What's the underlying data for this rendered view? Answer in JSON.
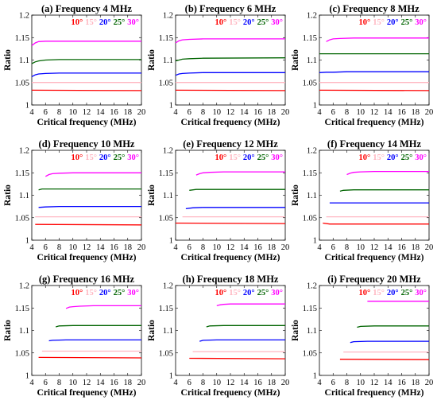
{
  "shared": {
    "ylabel": "Ratio",
    "xlabel": "Critical frequency (MHz)",
    "xticks": [
      "4",
      "6",
      "8",
      "10",
      "12",
      "14",
      "16",
      "18",
      "20"
    ],
    "yticks": [
      "1",
      "1.05",
      "1.1",
      "1.15",
      "1.2"
    ],
    "legend": [
      {
        "label": "10°",
        "color": "#ff0000"
      },
      {
        "label": "15°",
        "color": "#ffb6c1"
      },
      {
        "label": "20°",
        "color": "#0000ff"
      },
      {
        "label": "25°",
        "color": "#006400"
      },
      {
        "label": "30°",
        "color": "#ff00ff"
      }
    ]
  },
  "chart_data": [
    {
      "type": "line",
      "title": "(a) Frequency 4 MHz",
      "xlim": [
        4,
        20
      ],
      "ylim": [
        1,
        1.2
      ],
      "series": [
        {
          "name": "10°",
          "x": [
            4,
            20
          ],
          "y": [
            1.033,
            1.032
          ]
        },
        {
          "name": "15°",
          "x": [
            4,
            20
          ],
          "y": [
            1.05,
            1.05
          ]
        },
        {
          "name": "20°",
          "x": [
            4,
            4.5,
            5,
            6,
            8,
            20
          ],
          "y": [
            1.063,
            1.067,
            1.069,
            1.07,
            1.071,
            1.071
          ]
        },
        {
          "name": "25°",
          "x": [
            4,
            4.5,
            5,
            6,
            8,
            20
          ],
          "y": [
            1.092,
            1.096,
            1.098,
            1.1,
            1.101,
            1.101
          ]
        },
        {
          "name": "30°",
          "x": [
            4,
            4.5,
            5,
            6,
            8,
            20
          ],
          "y": [
            1.132,
            1.138,
            1.141,
            1.142,
            1.142,
            1.142
          ]
        }
      ]
    },
    {
      "type": "line",
      "title": "(b) Frequency 6 MHz",
      "xlim": [
        4,
        20
      ],
      "ylim": [
        1,
        1.2
      ],
      "series": [
        {
          "name": "10°",
          "x": [
            4,
            20
          ],
          "y": [
            1.033,
            1.032
          ]
        },
        {
          "name": "15°",
          "x": [
            4,
            20
          ],
          "y": [
            1.05,
            1.05
          ]
        },
        {
          "name": "20°",
          "x": [
            4,
            4.5,
            5,
            6,
            8,
            20
          ],
          "y": [
            1.066,
            1.069,
            1.07,
            1.071,
            1.072,
            1.072
          ]
        },
        {
          "name": "25°",
          "x": [
            4,
            4.5,
            5,
            6,
            8,
            20
          ],
          "y": [
            1.098,
            1.1,
            1.102,
            1.103,
            1.104,
            1.105
          ]
        },
        {
          "name": "30°",
          "x": [
            4,
            4.5,
            5,
            6,
            8,
            20
          ],
          "y": [
            1.138,
            1.143,
            1.145,
            1.146,
            1.147,
            1.147
          ]
        }
      ]
    },
    {
      "type": "line",
      "title": "(c) Frequency 8 MHz",
      "xlim": [
        4,
        20
      ],
      "ylim": [
        1,
        1.2
      ],
      "series": [
        {
          "name": "10°",
          "x": [
            4,
            20
          ],
          "y": [
            1.033,
            1.032
          ]
        },
        {
          "name": "15°",
          "x": [
            4,
            20
          ],
          "y": [
            1.05,
            1.05
          ]
        },
        {
          "name": "20°",
          "x": [
            4,
            5,
            6,
            8,
            20
          ],
          "y": [
            1.072,
            1.073,
            1.073,
            1.074,
            1.074
          ]
        },
        {
          "name": "25°",
          "x": [
            4,
            6,
            20
          ],
          "y": [
            1.114,
            1.114,
            1.114
          ]
        },
        {
          "name": "30°",
          "x": [
            5,
            5.5,
            6,
            7,
            9,
            20
          ],
          "y": [
            1.141,
            1.145,
            1.147,
            1.148,
            1.149,
            1.149
          ]
        }
      ]
    },
    {
      "type": "line",
      "title": "(d) Frequency 10 MHz",
      "xlim": [
        4,
        20
      ],
      "ylim": [
        1,
        1.2
      ],
      "series": [
        {
          "name": "10°",
          "x": [
            4.5,
            20
          ],
          "y": [
            1.035,
            1.034
          ]
        },
        {
          "name": "15°",
          "x": [
            4.5,
            20
          ],
          "y": [
            1.052,
            1.052
          ]
        },
        {
          "name": "20°",
          "x": [
            5,
            6,
            8,
            20
          ],
          "y": [
            1.073,
            1.074,
            1.075,
            1.075
          ]
        },
        {
          "name": "25°",
          "x": [
            5,
            5.5,
            7,
            20
          ],
          "y": [
            1.112,
            1.114,
            1.114,
            1.114
          ]
        },
        {
          "name": "30°",
          "x": [
            6,
            6.5,
            7,
            8,
            10,
            20
          ],
          "y": [
            1.142,
            1.146,
            1.148,
            1.149,
            1.15,
            1.15
          ]
        }
      ]
    },
    {
      "type": "line",
      "title": "(e) Frequency 12 MHz",
      "xlim": [
        4,
        20
      ],
      "ylim": [
        1,
        1.2
      ],
      "series": [
        {
          "name": "10°",
          "x": [
            4,
            20
          ],
          "y": [
            1.038,
            1.037
          ]
        },
        {
          "name": "15°",
          "x": [
            5,
            20
          ],
          "y": [
            1.052,
            1.052
          ]
        },
        {
          "name": "20°",
          "x": [
            5.5,
            6.5,
            8,
            20
          ],
          "y": [
            1.07,
            1.072,
            1.073,
            1.073
          ]
        },
        {
          "name": "25°",
          "x": [
            6,
            7,
            20
          ],
          "y": [
            1.111,
            1.113,
            1.113
          ]
        },
        {
          "name": "30°",
          "x": [
            7,
            7.5,
            8,
            9,
            11,
            20
          ],
          "y": [
            1.145,
            1.148,
            1.15,
            1.151,
            1.152,
            1.152
          ]
        }
      ]
    },
    {
      "type": "line",
      "title": "(f) Frequency 14 MHz",
      "xlim": [
        4,
        20
      ],
      "ylim": [
        1,
        1.2
      ],
      "series": [
        {
          "name": "10°",
          "x": [
            4.5,
            5.5,
            20
          ],
          "y": [
            1.038,
            1.036,
            1.036
          ]
        },
        {
          "name": "15°",
          "x": [
            5,
            20
          ],
          "y": [
            1.052,
            1.052
          ]
        },
        {
          "name": "20°",
          "x": [
            5.5,
            20
          ],
          "y": [
            1.083,
            1.083
          ]
        },
        {
          "name": "25°",
          "x": [
            7,
            7.5,
            9,
            20
          ],
          "y": [
            1.109,
            1.111,
            1.112,
            1.112
          ]
        },
        {
          "name": "30°",
          "x": [
            8,
            8.5,
            9,
            10,
            12,
            20
          ],
          "y": [
            1.146,
            1.149,
            1.151,
            1.152,
            1.153,
            1.153
          ]
        }
      ]
    },
    {
      "type": "line",
      "title": "(g) Frequency 16 MHz",
      "xlim": [
        4,
        20
      ],
      "ylim": [
        1,
        1.2
      ],
      "series": [
        {
          "name": "10°",
          "x": [
            5,
            20
          ],
          "y": [
            1.04,
            1.039
          ]
        },
        {
          "name": "15°",
          "x": [
            5.5,
            20
          ],
          "y": [
            1.054,
            1.054
          ]
        },
        {
          "name": "20°",
          "x": [
            6.5,
            7,
            9,
            20
          ],
          "y": [
            1.077,
            1.078,
            1.079,
            1.079
          ]
        },
        {
          "name": "25°",
          "x": [
            7.5,
            8,
            10,
            20
          ],
          "y": [
            1.108,
            1.11,
            1.111,
            1.111
          ]
        },
        {
          "name": "30°",
          "x": [
            9,
            9.5,
            10,
            11,
            13,
            20
          ],
          "y": [
            1.149,
            1.152,
            1.153,
            1.154,
            1.155,
            1.155
          ]
        }
      ]
    },
    {
      "type": "line",
      "title": "(h) Frequency 18 MHz",
      "xlim": [
        4,
        20
      ],
      "ylim": [
        1,
        1.2
      ],
      "series": [
        {
          "name": "10°",
          "x": [
            6,
            20
          ],
          "y": [
            1.038,
            1.037
          ]
        },
        {
          "name": "15°",
          "x": [
            6.5,
            20
          ],
          "y": [
            1.053,
            1.053
          ]
        },
        {
          "name": "20°",
          "x": [
            7.5,
            8,
            10,
            20
          ],
          "y": [
            1.076,
            1.078,
            1.079,
            1.079
          ]
        },
        {
          "name": "25°",
          "x": [
            8.5,
            9,
            11,
            20
          ],
          "y": [
            1.108,
            1.11,
            1.111,
            1.111
          ]
        },
        {
          "name": "30°",
          "x": [
            10,
            10.5,
            11,
            12,
            14,
            20
          ],
          "y": [
            1.155,
            1.157,
            1.158,
            1.159,
            1.159,
            1.159
          ]
        }
      ]
    },
    {
      "type": "line",
      "title": "(i) Frequency 20 MHz",
      "xlim": [
        4,
        20
      ],
      "ylim": [
        1,
        1.2
      ],
      "series": [
        {
          "name": "10°",
          "x": [
            7,
            20
          ],
          "y": [
            1.036,
            1.035
          ]
        },
        {
          "name": "15°",
          "x": [
            7.5,
            20
          ],
          "y": [
            1.052,
            1.052
          ]
        },
        {
          "name": "20°",
          "x": [
            8.5,
            9,
            11,
            20
          ],
          "y": [
            1.073,
            1.075,
            1.076,
            1.076
          ]
        },
        {
          "name": "25°",
          "x": [
            9.5,
            10,
            12,
            20
          ],
          "y": [
            1.107,
            1.109,
            1.11,
            1.11
          ]
        },
        {
          "name": "30°",
          "x": [
            11,
            20
          ],
          "y": [
            1.165,
            1.165
          ]
        }
      ]
    }
  ]
}
